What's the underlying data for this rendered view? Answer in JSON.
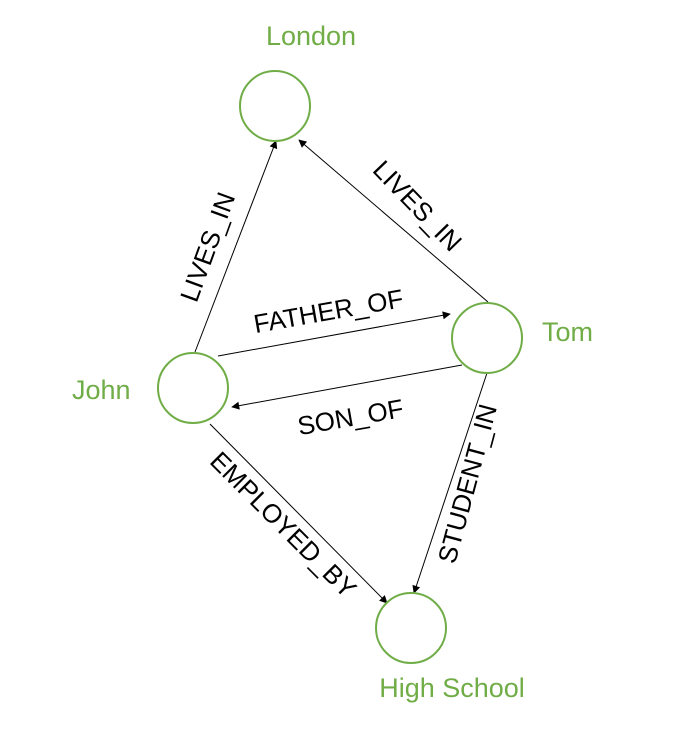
{
  "colors": {
    "node_stroke": "#70ad47",
    "node_label": "#70ad47",
    "edge": "#000000",
    "background": "#ffffff"
  },
  "nodes": {
    "london": "London",
    "tom": "Tom",
    "john": "John",
    "high_school": "High School"
  },
  "edges": {
    "john_lives_in_london": "LIVES_IN",
    "tom_lives_in_london": "LIVES_IN",
    "john_father_of_tom": "FATHER_OF",
    "tom_son_of_john": "SON_OF",
    "john_employed_by_school": "EMPLOYED_BY",
    "tom_student_in_school": "STUDENT_IN"
  }
}
